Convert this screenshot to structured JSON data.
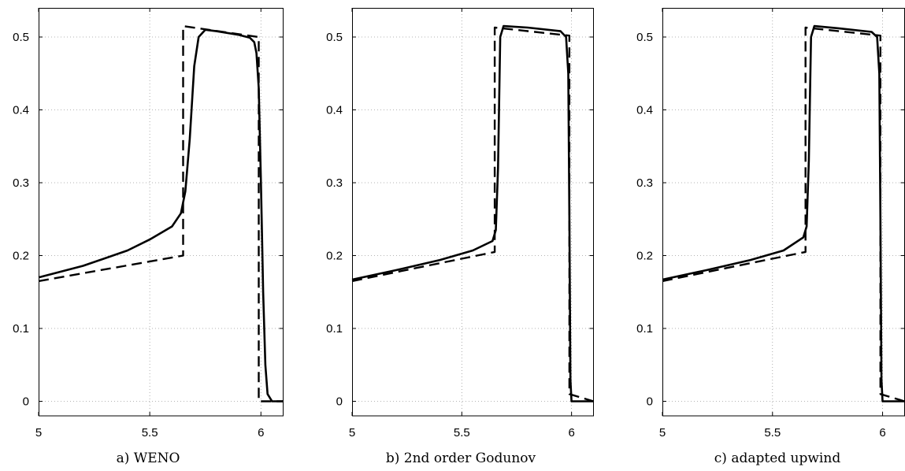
{
  "chart_data": [
    {
      "type": "line",
      "caption": "a) WENO",
      "xlim": [
        5,
        6.1
      ],
      "ylim": [
        -0.02,
        0.54
      ],
      "x_ticks": [
        "5",
        "5.5",
        "6"
      ],
      "y_ticks": [
        "0",
        "0.1",
        "0.2",
        "0.3",
        "0.4",
        "0.5"
      ],
      "grid": true,
      "series": [
        {
          "style": "dashed",
          "x": [
            5.0,
            5.65,
            5.65,
            5.99,
            5.99,
            6.1
          ],
          "y": [
            0.165,
            0.2,
            0.515,
            0.5,
            0.0,
            0.0
          ]
        },
        {
          "style": "solid",
          "x": [
            5.0,
            5.2,
            5.4,
            5.5,
            5.6,
            5.64,
            5.66,
            5.68,
            5.7,
            5.72,
            5.75,
            5.8,
            5.9,
            5.95,
            5.97,
            5.98,
            5.99,
            6.0,
            6.01,
            6.02,
            6.03,
            6.05,
            6.1
          ],
          "y": [
            0.17,
            0.186,
            0.207,
            0.222,
            0.24,
            0.258,
            0.288,
            0.36,
            0.46,
            0.5,
            0.51,
            0.508,
            0.503,
            0.499,
            0.493,
            0.478,
            0.43,
            0.3,
            0.15,
            0.05,
            0.01,
            0.0,
            0.0
          ]
        }
      ]
    },
    {
      "type": "line",
      "caption": "b) 2nd order Godunov",
      "xlim": [
        5,
        6.1
      ],
      "ylim": [
        -0.02,
        0.54
      ],
      "x_ticks": [
        "5",
        "5.5",
        "6"
      ],
      "y_ticks": [
        "0",
        "0.1",
        "0.2",
        "0.3",
        "0.4",
        "0.5"
      ],
      "grid": true,
      "series": [
        {
          "style": "dashed",
          "x": [
            5.0,
            5.65,
            5.65,
            5.99,
            5.99,
            6.1
          ],
          "y": [
            0.165,
            0.205,
            0.513,
            0.502,
            0.01,
            0.0
          ]
        },
        {
          "style": "solid",
          "x": [
            5.0,
            5.2,
            5.4,
            5.55,
            5.64,
            5.655,
            5.665,
            5.675,
            5.69,
            5.8,
            5.95,
            5.975,
            5.985,
            5.99,
            5.995,
            6.0,
            6.1
          ],
          "y": [
            0.167,
            0.18,
            0.194,
            0.207,
            0.22,
            0.235,
            0.32,
            0.5,
            0.515,
            0.513,
            0.508,
            0.5,
            0.45,
            0.25,
            0.03,
            0.0,
            0.0
          ]
        }
      ]
    },
    {
      "type": "line",
      "caption": "c) adapted upwind",
      "xlim": [
        5,
        6.1
      ],
      "ylim": [
        -0.02,
        0.54
      ],
      "x_ticks": [
        "5",
        "5.5",
        "6"
      ],
      "y_ticks": [
        "0",
        "0.1",
        "0.2",
        "0.3",
        "0.4",
        "0.5"
      ],
      "grid": true,
      "series": [
        {
          "style": "dashed",
          "x": [
            5.0,
            5.65,
            5.65,
            5.99,
            5.99,
            6.1
          ],
          "y": [
            0.165,
            0.205,
            0.513,
            0.502,
            0.01,
            0.0
          ]
        },
        {
          "style": "solid",
          "x": [
            5.0,
            5.2,
            5.4,
            5.55,
            5.64,
            5.655,
            5.665,
            5.675,
            5.69,
            5.8,
            5.95,
            5.975,
            5.985,
            5.99,
            5.995,
            6.0,
            6.1
          ],
          "y": [
            0.167,
            0.18,
            0.194,
            0.207,
            0.225,
            0.24,
            0.33,
            0.5,
            0.515,
            0.512,
            0.507,
            0.5,
            0.45,
            0.25,
            0.03,
            0.0,
            0.0
          ]
        }
      ]
    }
  ]
}
